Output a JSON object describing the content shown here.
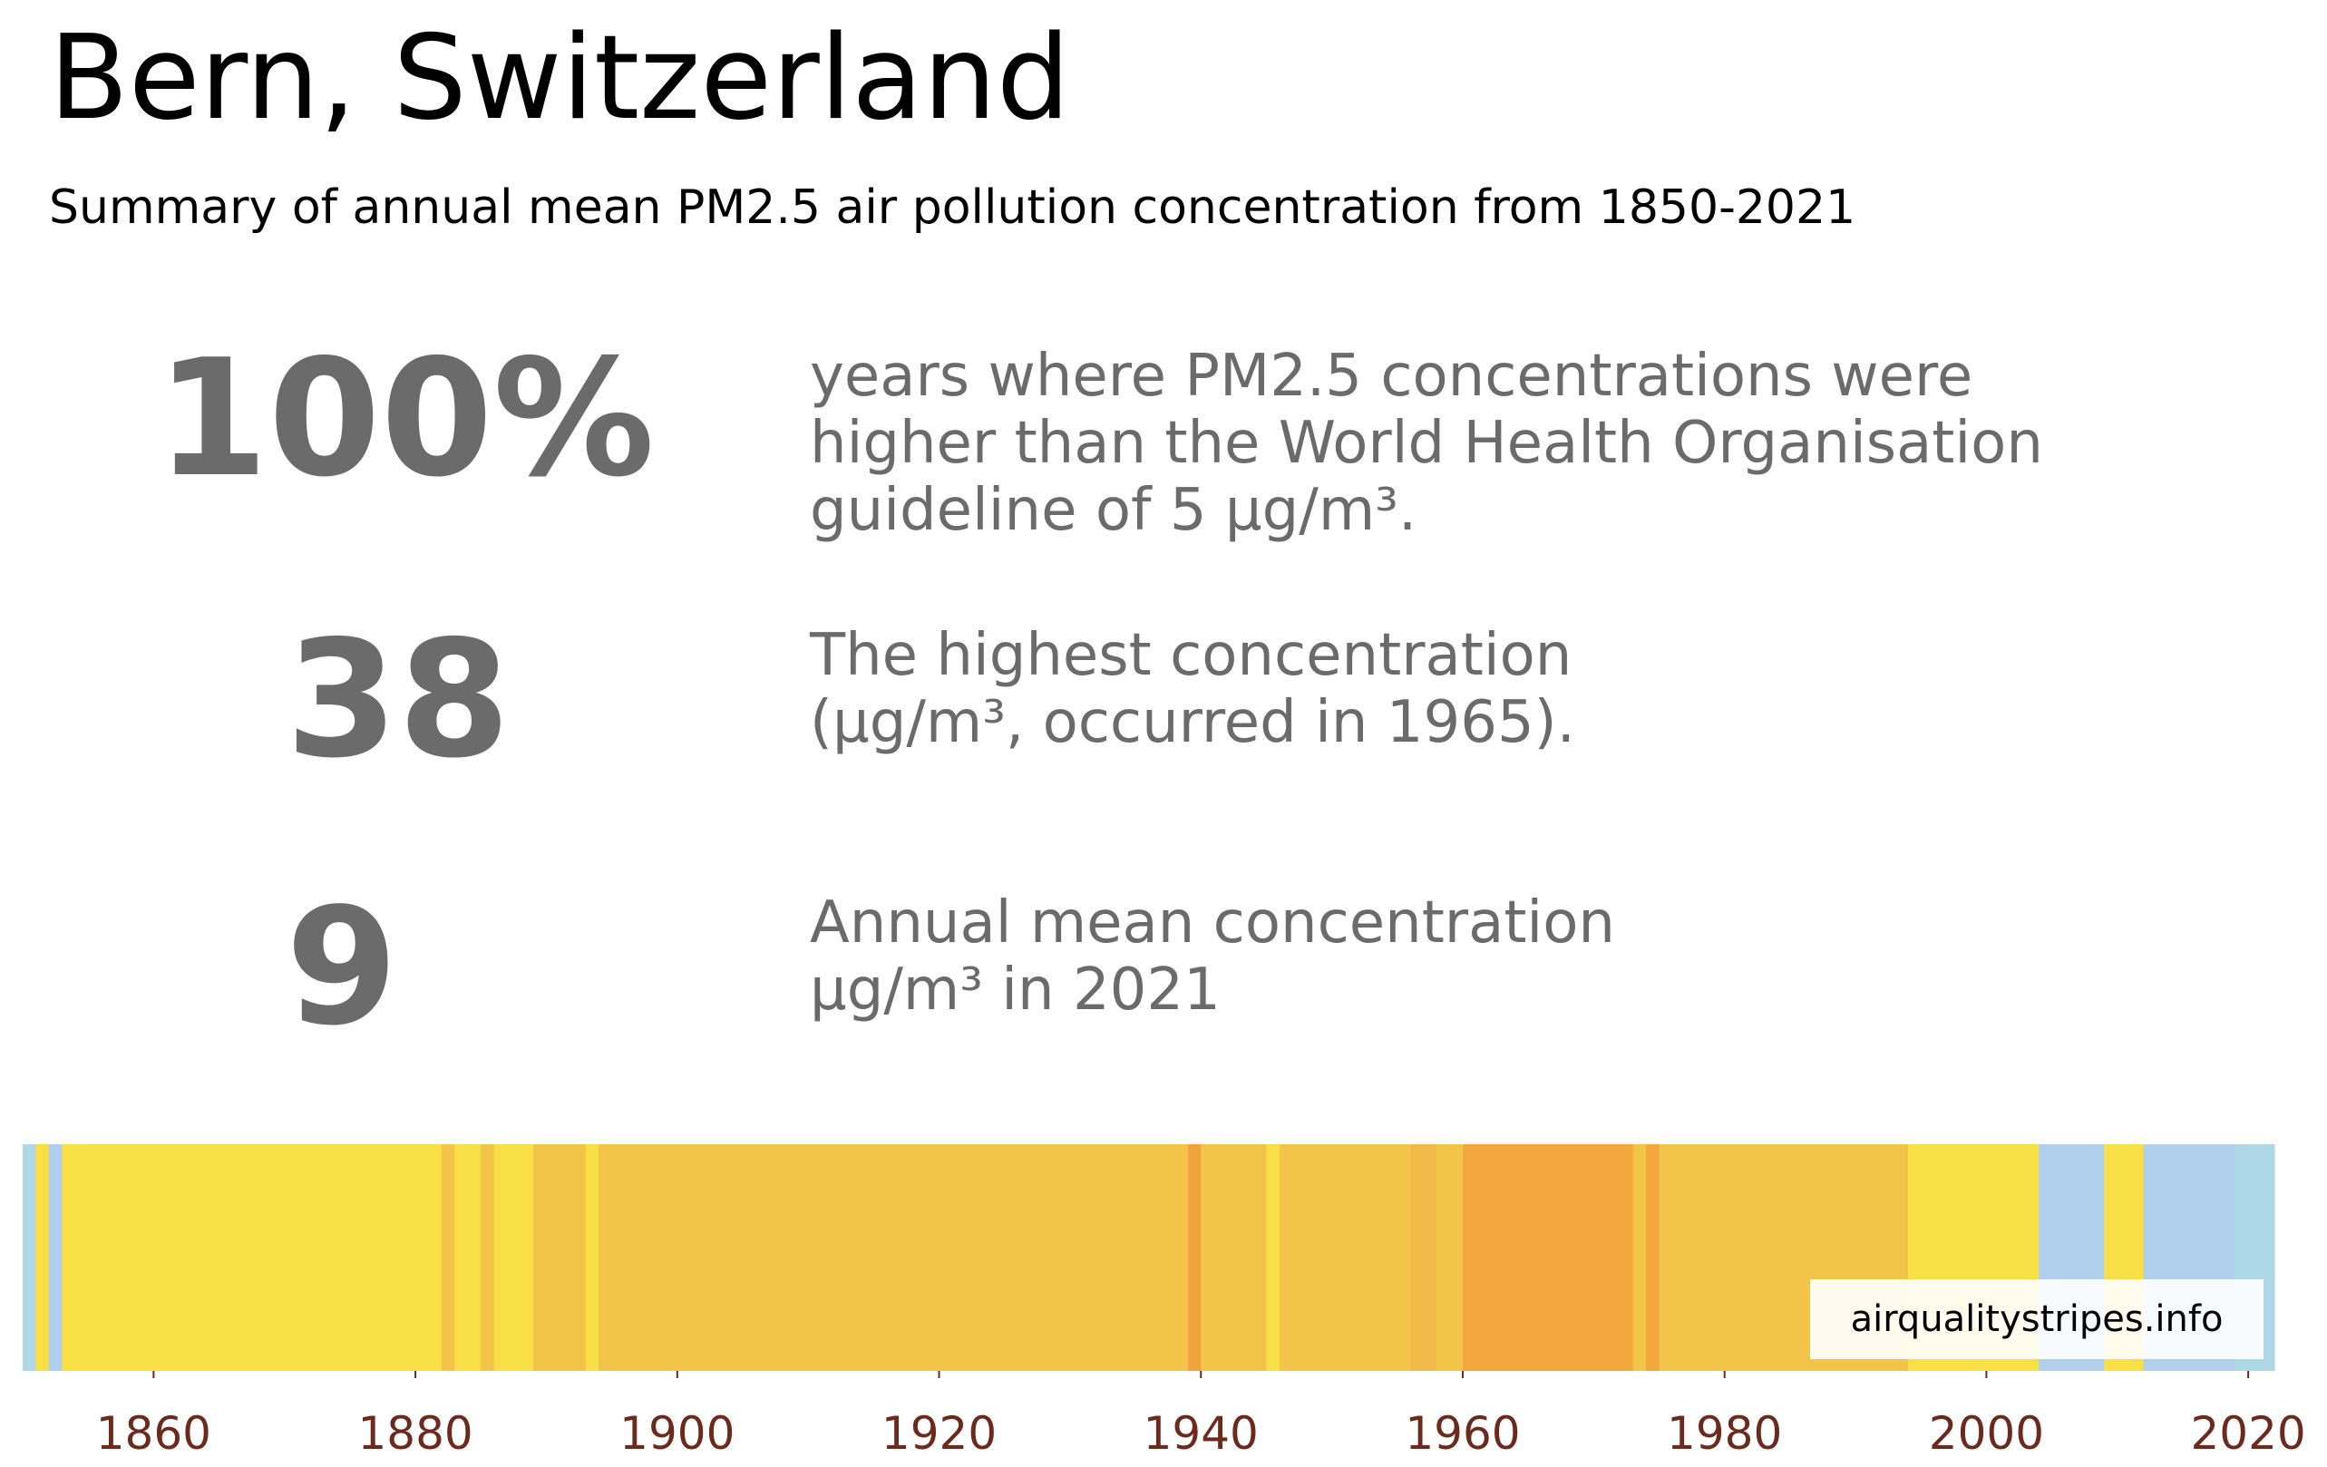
{
  "title": "Bern, Switzerland",
  "subtitle": "Summary of annual mean PM2.5 air pollution concentration from 1850-2021",
  "stats": [
    {
      "value": "100%",
      "lines": [
        "years where PM2.5 concentrations were",
        "higher than the World Health Organisation",
        "guideline of 5 µg/m³."
      ]
    },
    {
      "value": "38",
      "lines": [
        "The highest concentration",
        "(µg/m³, occurred in 1965)."
      ]
    },
    {
      "value": "9",
      "lines": [
        "Annual mean concentration",
        "µg/m³ in 2021"
      ]
    }
  ],
  "chart_data": {
    "type": "heatmap",
    "x_label_color": "#6b2a1c",
    "xlim": [
      1850,
      2022
    ],
    "x_ticks": [
      1860,
      1880,
      1900,
      1920,
      1940,
      1960,
      1980,
      2000,
      2020
    ],
    "watermark": "airqualitystripes.info",
    "colors": {
      "light_blue": "#aed8e6",
      "pale_blue": "#b0cfeb",
      "yellow": "#f8df45",
      "gold": "#f2c548",
      "orange": "#f0a33f",
      "deep_orange": "#f3a63e"
    },
    "stripes": [
      {
        "start": 1850,
        "end": 1851,
        "color": "#aed8e6"
      },
      {
        "start": 1851,
        "end": 1852,
        "color": "#f8df45"
      },
      {
        "start": 1852,
        "end": 1853,
        "color": "#b0cfeb"
      },
      {
        "start": 1853,
        "end": 1882,
        "color": "#f8df45"
      },
      {
        "start": 1882,
        "end": 1883,
        "color": "#f2c548"
      },
      {
        "start": 1883,
        "end": 1885,
        "color": "#f8df45"
      },
      {
        "start": 1885,
        "end": 1886,
        "color": "#f2c548"
      },
      {
        "start": 1886,
        "end": 1889,
        "color": "#f8df45"
      },
      {
        "start": 1889,
        "end": 1893,
        "color": "#f2c548"
      },
      {
        "start": 1893,
        "end": 1894,
        "color": "#f8df45"
      },
      {
        "start": 1894,
        "end": 1939,
        "color": "#f2c548"
      },
      {
        "start": 1939,
        "end": 1940,
        "color": "#f0a33f"
      },
      {
        "start": 1940,
        "end": 1945,
        "color": "#f2c548"
      },
      {
        "start": 1945,
        "end": 1946,
        "color": "#f8df45"
      },
      {
        "start": 1946,
        "end": 1956,
        "color": "#f2c548"
      },
      {
        "start": 1956,
        "end": 1958,
        "color": "#f3b84a"
      },
      {
        "start": 1958,
        "end": 1960,
        "color": "#f2c548"
      },
      {
        "start": 1960,
        "end": 1973,
        "color": "#f3a63e"
      },
      {
        "start": 1973,
        "end": 1974,
        "color": "#f2c548"
      },
      {
        "start": 1974,
        "end": 1975,
        "color": "#f3a63e"
      },
      {
        "start": 1975,
        "end": 1994,
        "color": "#f2c548"
      },
      {
        "start": 1994,
        "end": 2004,
        "color": "#f8df45"
      },
      {
        "start": 2004,
        "end": 2009,
        "color": "#b0cfeb"
      },
      {
        "start": 2009,
        "end": 2012,
        "color": "#f8df45"
      },
      {
        "start": 2012,
        "end": 2019,
        "color": "#b0cfeb"
      },
      {
        "start": 2019,
        "end": 2022,
        "color": "#aed8e6"
      }
    ]
  }
}
